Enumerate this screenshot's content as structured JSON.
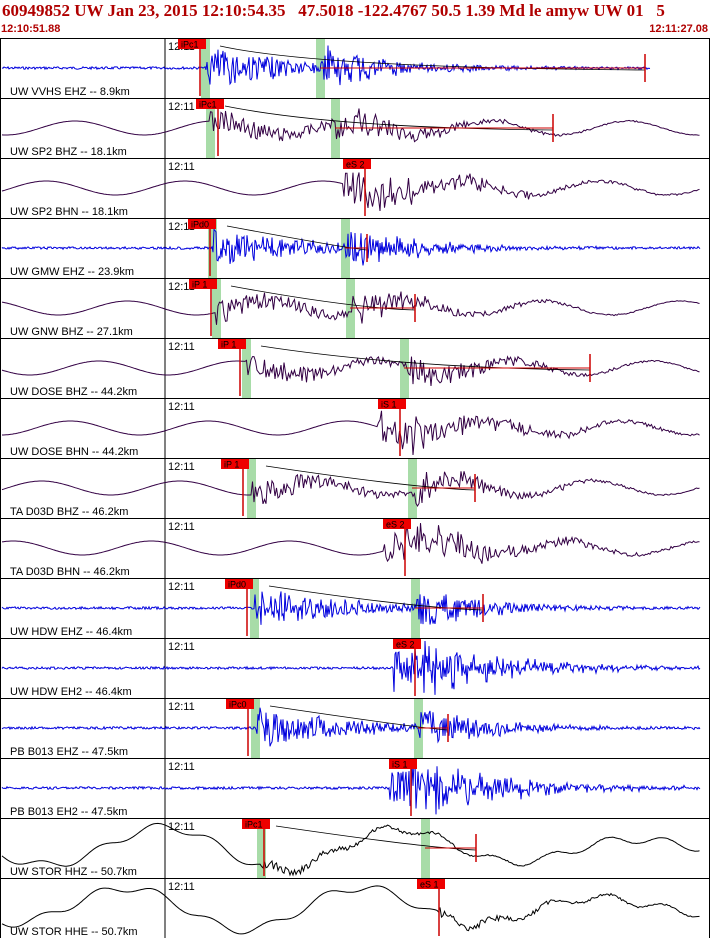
{
  "header": {
    "title": "60949852 UW Jan 23, 2015 12:10:54.35   47.5018 -122.4767 50.5 1.39 Md le amyw UW 01   5",
    "time_start": "12:10:51.88",
    "time_end": "12:11:27.08"
  },
  "colors": {
    "short_period_trace": "#0000dd",
    "broadband_trace": "#330044",
    "strong_motion_trace": "#000000",
    "pick_tag": "#ee0000",
    "pick_line": "#cc0000",
    "theoretical_band": "#a8dca8",
    "header_text": "#b00000"
  },
  "tick_label": "12:11",
  "channels": [
    {
      "label": "UW VVHS EHZ -- 8.9km",
      "pick": "iPc1",
      "color": "short_period_trace",
      "style": "sp"
    },
    {
      "label": "UW SP2 BHZ -- 18.1km",
      "pick": "iPc1",
      "color": "broadband_trace",
      "style": "bb"
    },
    {
      "label": "UW SP2 BHN -- 18.1km",
      "pick": "eS 2",
      "color": "broadband_trace",
      "style": "bb"
    },
    {
      "label": "UW GMW EHZ -- 23.9km",
      "pick": "iPd0",
      "color": "short_period_trace",
      "style": "sp"
    },
    {
      "label": "UW GNW BHZ -- 27.1km",
      "pick": "iP 1",
      "color": "broadband_trace",
      "style": "bb"
    },
    {
      "label": "UW DOSE BHZ -- 44.2km",
      "pick": "iP 1",
      "color": "broadband_trace",
      "style": "bb"
    },
    {
      "label": "UW DOSE BHN -- 44.2km",
      "pick": "iS 1",
      "color": "broadband_trace",
      "style": "bb"
    },
    {
      "label": "TA D03D BHZ -- 46.2km",
      "pick": "iP 1",
      "color": "broadband_trace",
      "style": "bb"
    },
    {
      "label": "TA D03D BHN -- 46.2km",
      "pick": "eS 2",
      "color": "broadband_trace",
      "style": "bb"
    },
    {
      "label": "UW HDW EHZ -- 46.4km",
      "pick": "iPd0",
      "color": "short_period_trace",
      "style": "sp"
    },
    {
      "label": "UW HDW EH2 -- 46.4km",
      "pick": "eS 2",
      "color": "short_period_trace",
      "style": "sp"
    },
    {
      "label": "PB B013 EHZ -- 47.5km",
      "pick": "iPc0",
      "color": "short_period_trace",
      "style": "sp"
    },
    {
      "label": "PB B013 EH2 -- 47.5km",
      "pick": "iS 1",
      "color": "short_period_trace",
      "style": "sp"
    },
    {
      "label": "UW STOR HHZ -- 50.7km",
      "pick": "iPc1",
      "color": "strong_motion_trace",
      "style": "lp"
    },
    {
      "label": "UW STOR HHE -- 50.7km",
      "pick": "eS 1",
      "color": "strong_motion_trace",
      "style": "lp"
    }
  ]
}
